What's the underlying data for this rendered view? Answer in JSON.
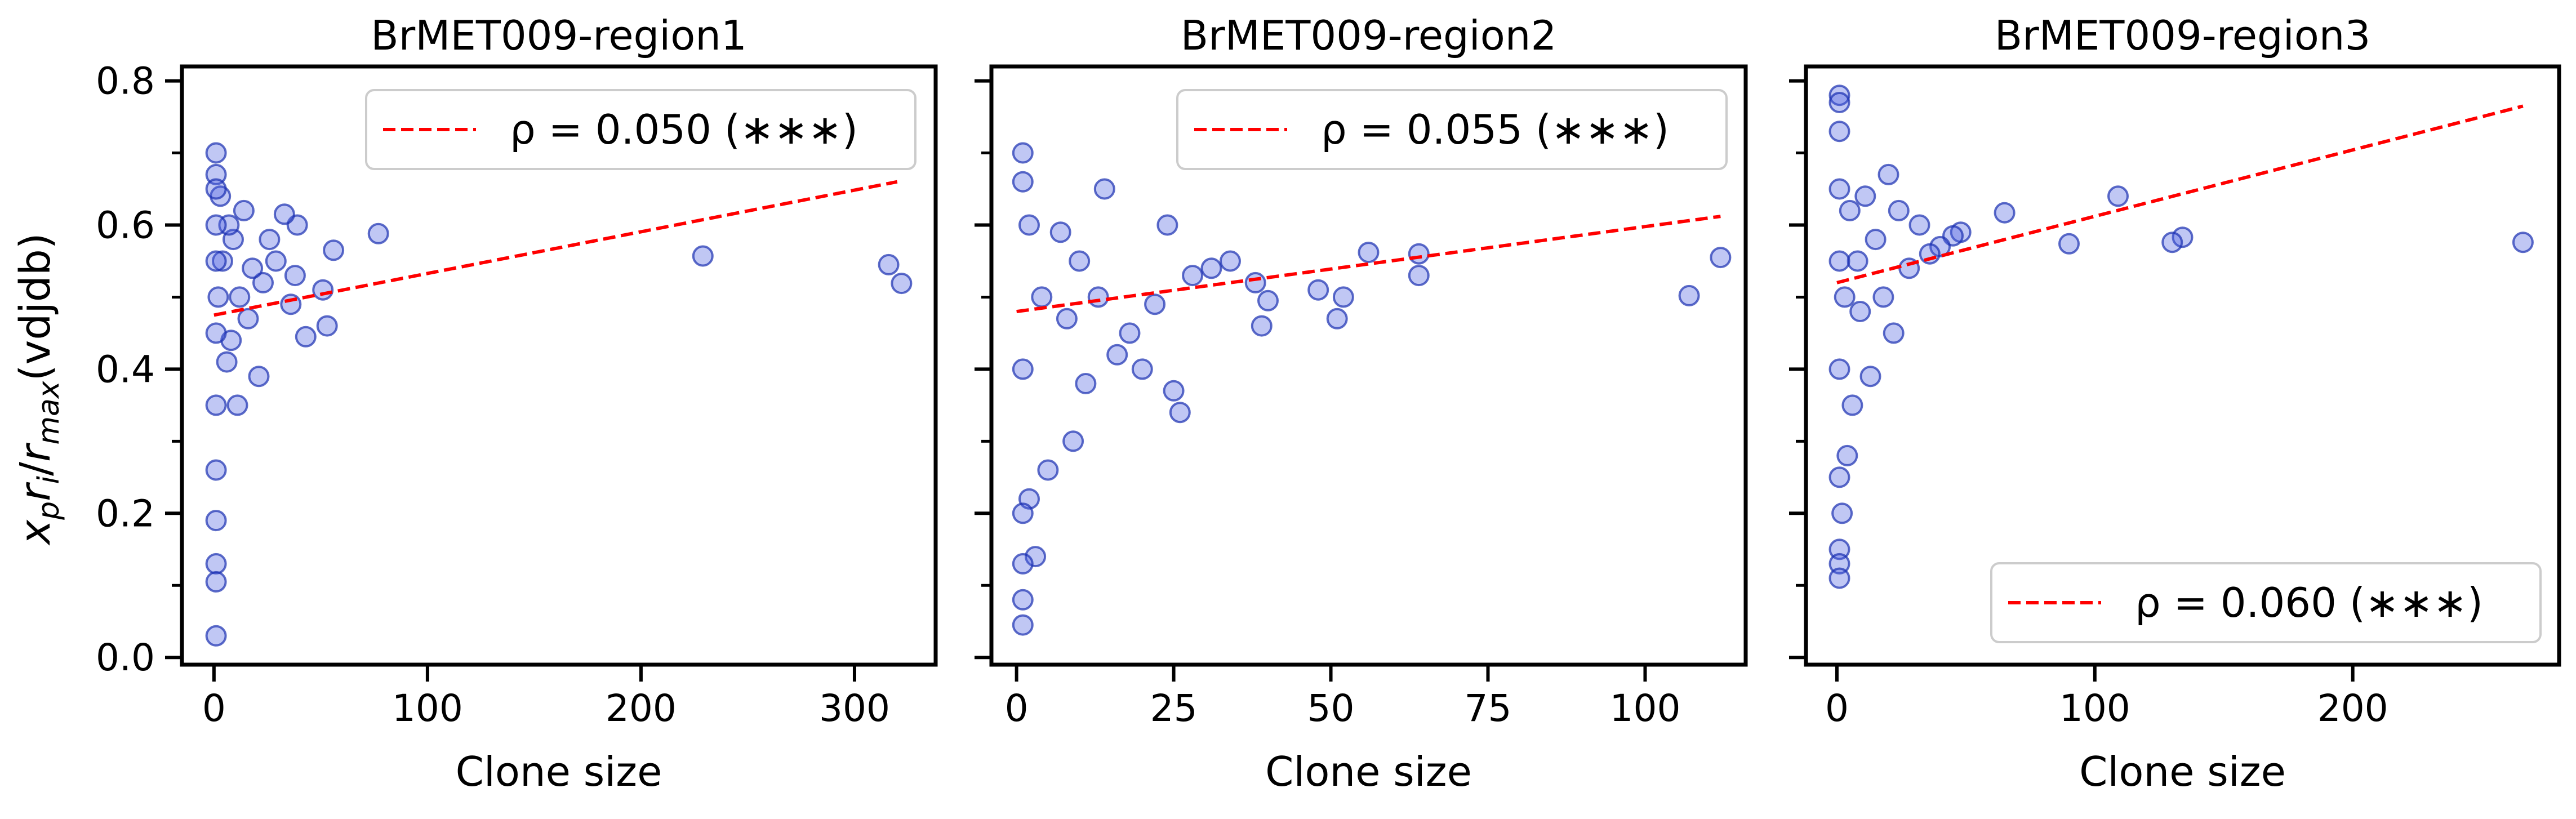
{
  "colors": {
    "point_fill": "#4a5fe0",
    "point_edge": "#1a2fb0",
    "fit_line": "#ff0000",
    "frame": "#000000",
    "background": "#ffffff"
  },
  "chart_data": [
    {
      "type": "scatter",
      "title": "BrMET009-region1",
      "xlabel": "Clone size",
      "ylabel": "x_p r_i / r_max (vdjdb)",
      "ylabel_parts": {
        "x": "x",
        "p": "p",
        "r1": "r",
        "i": "i",
        "slash": "/",
        "r2": "r",
        "max": "max",
        "suffix": "(vdjdb)"
      },
      "xlim": [
        -15,
        338
      ],
      "ylim": [
        -0.01,
        0.82
      ],
      "xticks": [
        0,
        100,
        200,
        300
      ],
      "xtick_labels": [
        "0",
        "100",
        "200",
        "300"
      ],
      "yticks": [
        0.0,
        0.2,
        0.4,
        0.6,
        0.8
      ],
      "ytick_labels": [
        "0.0",
        "0.2",
        "0.4",
        "0.6",
        "0.8"
      ],
      "legend": {
        "label": "ρ = 0.050 (∗∗∗)",
        "location": "upper right"
      },
      "fit_line": {
        "x": [
          0,
          320
        ],
        "y": [
          0.475,
          0.66
        ]
      },
      "points_x": [
        229,
        316,
        322,
        77,
        56,
        53,
        51,
        43,
        39,
        38,
        36,
        33,
        29,
        26,
        23,
        21,
        18,
        16,
        14,
        12,
        11,
        9,
        8,
        7,
        6,
        4,
        3,
        2,
        1,
        1,
        1,
        1,
        1,
        1,
        1,
        1,
        1,
        1,
        1,
        1
      ],
      "points_y": [
        0.557,
        0.545,
        0.519,
        0.588,
        0.565,
        0.46,
        0.51,
        0.445,
        0.6,
        0.53,
        0.49,
        0.615,
        0.55,
        0.58,
        0.52,
        0.39,
        0.54,
        0.47,
        0.62,
        0.5,
        0.35,
        0.58,
        0.44,
        0.6,
        0.41,
        0.55,
        0.64,
        0.5,
        0.7,
        0.67,
        0.65,
        0.6,
        0.55,
        0.45,
        0.35,
        0.26,
        0.19,
        0.13,
        0.105,
        0.03
      ]
    },
    {
      "type": "scatter",
      "title": "BrMET009-region2",
      "xlabel": "Clone size",
      "xlim": [
        -4,
        116
      ],
      "ylim": [
        -0.01,
        0.82
      ],
      "xticks": [
        0,
        25,
        50,
        75,
        100
      ],
      "xtick_labels": [
        "0",
        "25",
        "50",
        "75",
        "100"
      ],
      "yticks": [
        0.0,
        0.2,
        0.4,
        0.6,
        0.8
      ],
      "legend": {
        "label": "ρ = 0.055 (∗∗∗)",
        "location": "upper right"
      },
      "fit_line": {
        "x": [
          0,
          112
        ],
        "y": [
          0.48,
          0.612
        ]
      },
      "points_x": [
        112,
        107,
        64,
        64,
        56,
        52,
        51,
        48,
        40,
        39,
        38,
        34,
        31,
        28,
        26,
        25,
        24,
        22,
        20,
        18,
        16,
        14,
        13,
        11,
        10,
        9,
        8,
        7,
        5,
        4,
        3,
        2,
        2,
        1,
        1,
        1,
        1,
        1,
        1,
        1
      ],
      "points_y": [
        0.555,
        0.502,
        0.56,
        0.53,
        0.562,
        0.5,
        0.47,
        0.51,
        0.495,
        0.46,
        0.52,
        0.55,
        0.54,
        0.53,
        0.34,
        0.37,
        0.6,
        0.49,
        0.4,
        0.45,
        0.42,
        0.65,
        0.5,
        0.38,
        0.55,
        0.3,
        0.47,
        0.59,
        0.26,
        0.5,
        0.14,
        0.6,
        0.22,
        0.7,
        0.66,
        0.4,
        0.2,
        0.13,
        0.08,
        0.045
      ]
    },
    {
      "type": "scatter",
      "title": "BrMET009-region3",
      "xlabel": "Clone size",
      "xlim": [
        -12,
        280
      ],
      "ylim": [
        -0.01,
        0.82
      ],
      "xticks": [
        0,
        100,
        200
      ],
      "xtick_labels": [
        "0",
        "100",
        "200"
      ],
      "yticks": [
        0.0,
        0.2,
        0.4,
        0.6,
        0.8
      ],
      "legend": {
        "label": "ρ = 0.060 (∗∗∗)",
        "location": "lower right"
      },
      "fit_line": {
        "x": [
          0,
          266
        ],
        "y": [
          0.52,
          0.765
        ]
      },
      "points_x": [
        266,
        134,
        130,
        109,
        90,
        65,
        48,
        45,
        40,
        36,
        32,
        28,
        24,
        22,
        20,
        18,
        15,
        13,
        11,
        9,
        8,
        6,
        5,
        4,
        3,
        2,
        1,
        1,
        1,
        1,
        1,
        1,
        1,
        1,
        1,
        1
      ],
      "points_y": [
        0.576,
        0.583,
        0.576,
        0.64,
        0.574,
        0.617,
        0.59,
        0.585,
        0.57,
        0.56,
        0.6,
        0.54,
        0.62,
        0.45,
        0.67,
        0.5,
        0.58,
        0.39,
        0.64,
        0.48,
        0.55,
        0.35,
        0.62,
        0.28,
        0.5,
        0.2,
        0.78,
        0.77,
        0.73,
        0.65,
        0.55,
        0.4,
        0.25,
        0.15,
        0.13,
        0.11
      ]
    }
  ]
}
